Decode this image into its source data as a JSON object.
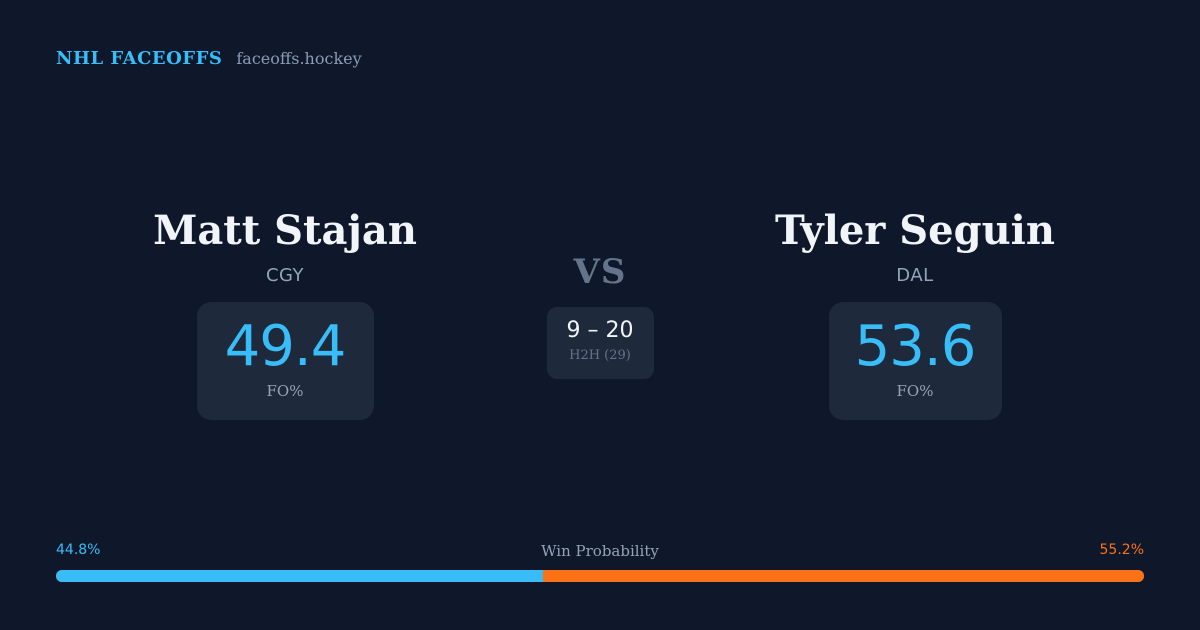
{
  "brand": {
    "name": "NHL FACEOFFS",
    "site": "faceoffs.hockey"
  },
  "players": {
    "left": {
      "name": "Matt Stajan",
      "team": "CGY",
      "fo_value": "49.4",
      "fo_label": "FO%"
    },
    "right": {
      "name": "Tyler Seguin",
      "team": "DAL",
      "fo_value": "53.6",
      "fo_label": "FO%"
    }
  },
  "vs": {
    "text": "VS",
    "h2h_score": "9 – 20",
    "h2h_label": "H2H (29)"
  },
  "win_probability": {
    "label": "Win Probability",
    "left_text": "44.8%",
    "right_text": "55.2%",
    "left_fraction": 0.448,
    "right_fraction": 0.552,
    "left_color": "#38bdf8",
    "right_color": "#f97316"
  }
}
